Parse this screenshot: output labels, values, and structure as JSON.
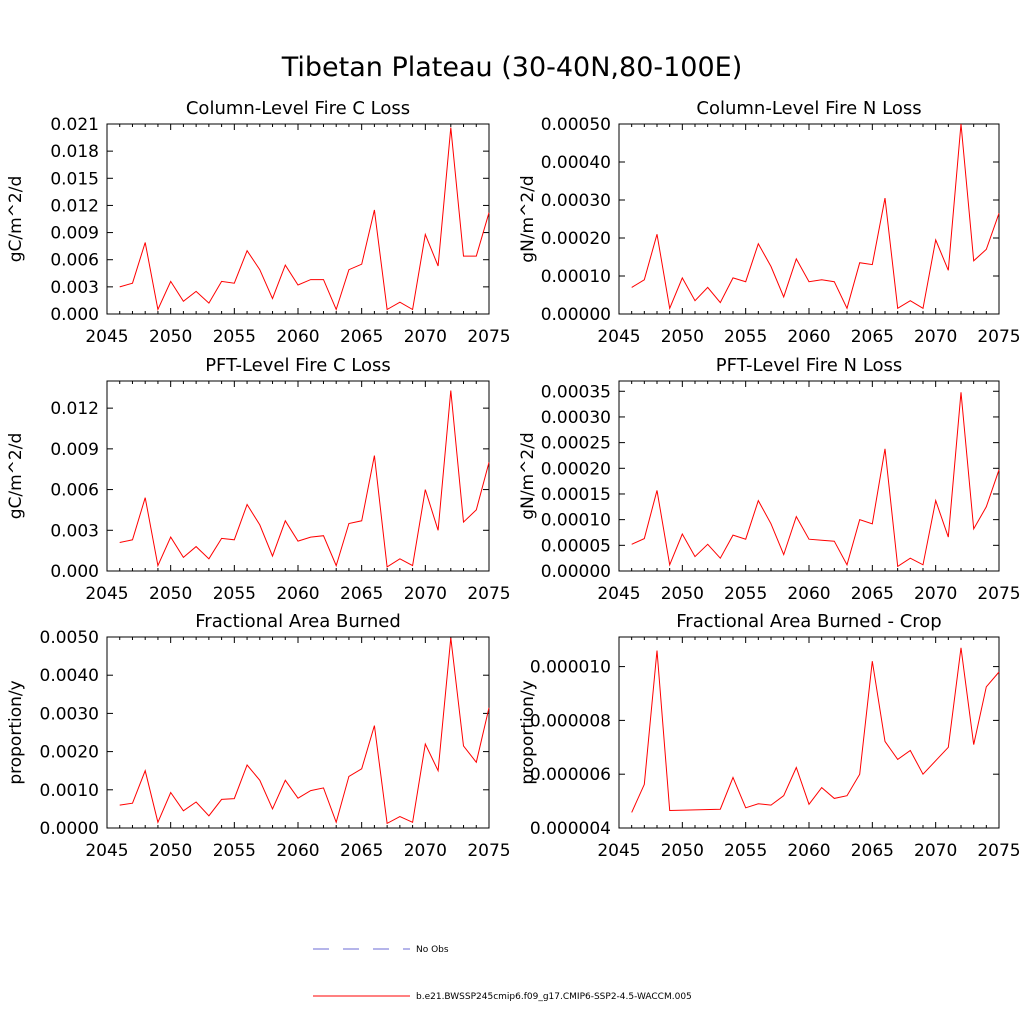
{
  "figure": {
    "title": "Tibetan Plateau (30-40N,80-100E)"
  },
  "colors": {
    "model_line": "#ff0000",
    "obs_line": "#6b6bd6",
    "axis": "#000000"
  },
  "legend": {
    "placement": "bottom-center",
    "entries": [
      {
        "label": "No Obs",
        "style": "dashed",
        "color": "#6b6bd6"
      },
      {
        "label": "b.e21.BWSSP245cmip6.f09_g17.CMIP6-SSP2-4.5-WACCM.005",
        "style": "solid",
        "color": "#ff0000"
      }
    ]
  },
  "chart_data": [
    {
      "type": "line",
      "title": "Column-Level Fire C Loss",
      "ylabel": "gC/m^2/d",
      "xlabel": "",
      "xlim": [
        2045,
        2075
      ],
      "ylim": [
        0,
        0.021
      ],
      "x_ticks": [
        2045,
        2050,
        2055,
        2060,
        2065,
        2070,
        2075
      ],
      "x_tick_labels": [
        "2045",
        "2050",
        "2055",
        "2060",
        "2065",
        "2070",
        "2075"
      ],
      "y_ticks": [
        0,
        0.003,
        0.006,
        0.009,
        0.012,
        0.015,
        0.018,
        0.021
      ],
      "y_tick_labels": [
        "0.000",
        "0.003",
        "0.006",
        "0.009",
        "0.012",
        "0.015",
        "0.018",
        "0.021"
      ],
      "x": [
        2046,
        2047,
        2048,
        2049,
        2050,
        2051,
        2052,
        2053,
        2054,
        2055,
        2056,
        2057,
        2058,
        2059,
        2060,
        2061,
        2062,
        2063,
        2064,
        2065,
        2066,
        2067,
        2068,
        2069,
        2070,
        2071,
        2072,
        2073,
        2074,
        2075
      ],
      "series": [
        {
          "values": [
            0.003,
            0.0034,
            0.0079,
            0.0005,
            0.0036,
            0.0014,
            0.0025,
            0.0012,
            0.0036,
            0.0034,
            0.007,
            0.0049,
            0.0017,
            0.0054,
            0.0032,
            0.0038,
            0.0038,
            0.0005,
            0.0049,
            0.0055,
            0.0115,
            0.0005,
            0.0013,
            0.0005,
            0.0088,
            0.0053,
            0.0206,
            0.0064,
            0.0064,
            0.0112
          ]
        }
      ]
    },
    {
      "type": "line",
      "title": "Column-Level Fire N Loss",
      "ylabel": "gN/m^2/d",
      "xlabel": "",
      "xlim": [
        2045,
        2075
      ],
      "ylim": [
        0,
        0.0005
      ],
      "x_ticks": [
        2045,
        2050,
        2055,
        2060,
        2065,
        2070,
        2075
      ],
      "x_tick_labels": [
        "2045",
        "2050",
        "2055",
        "2060",
        "2065",
        "2070",
        "2075"
      ],
      "y_ticks": [
        0,
        0.0001,
        0.0002,
        0.0003,
        0.0004,
        0.0005
      ],
      "y_tick_labels": [
        "0.00000",
        "0.00010",
        "0.00020",
        "0.00030",
        "0.00040",
        "0.00050"
      ],
      "x": [
        2046,
        2047,
        2048,
        2049,
        2050,
        2051,
        2052,
        2053,
        2054,
        2055,
        2056,
        2057,
        2058,
        2059,
        2060,
        2061,
        2062,
        2063,
        2064,
        2065,
        2066,
        2067,
        2068,
        2069,
        2070,
        2071,
        2072,
        2073,
        2074,
        2075
      ],
      "series": [
        {
          "values": [
            7e-05,
            9e-05,
            0.00021,
            1.5e-05,
            9.5e-05,
            3.5e-05,
            7e-05,
            3e-05,
            9.5e-05,
            8.5e-05,
            0.000185,
            0.000125,
            4.5e-05,
            0.000145,
            8.5e-05,
            9e-05,
            8.5e-05,
            1.5e-05,
            0.000135,
            0.00013,
            0.000305,
            1.5e-05,
            3.5e-05,
            1.5e-05,
            0.000195,
            0.000115,
            0.0005,
            0.00014,
            0.00017,
            0.000265
          ]
        }
      ]
    },
    {
      "type": "line",
      "title": "PFT-Level Fire C Loss",
      "ylabel": "gC/m^2/d",
      "xlabel": "",
      "xlim": [
        2045,
        2075
      ],
      "ylim": [
        0,
        0.014
      ],
      "x_ticks": [
        2045,
        2050,
        2055,
        2060,
        2065,
        2070,
        2075
      ],
      "x_tick_labels": [
        "2045",
        "2050",
        "2055",
        "2060",
        "2065",
        "2070",
        "2075"
      ],
      "y_ticks": [
        0,
        0.003,
        0.006,
        0.009,
        0.012
      ],
      "y_tick_labels": [
        "0.000",
        "0.003",
        "0.006",
        "0.009",
        "0.012"
      ],
      "x": [
        2046,
        2047,
        2048,
        2049,
        2050,
        2051,
        2052,
        2053,
        2054,
        2055,
        2056,
        2057,
        2058,
        2059,
        2060,
        2061,
        2062,
        2063,
        2064,
        2065,
        2066,
        2067,
        2068,
        2069,
        2070,
        2071,
        2072,
        2073,
        2074,
        2075
      ],
      "series": [
        {
          "values": [
            0.0021,
            0.0023,
            0.0054,
            0.0004,
            0.0025,
            0.001,
            0.0018,
            0.0009,
            0.0024,
            0.0023,
            0.0049,
            0.0034,
            0.0011,
            0.0037,
            0.0022,
            0.0025,
            0.0026,
            0.0004,
            0.0035,
            0.0037,
            0.0085,
            0.0003,
            0.0009,
            0.0004,
            0.006,
            0.003,
            0.0133,
            0.0036,
            0.0045,
            0.008
          ]
        }
      ]
    },
    {
      "type": "line",
      "title": "PFT-Level Fire N Loss",
      "ylabel": "gN/m^2/d",
      "xlabel": "",
      "xlim": [
        2045,
        2075
      ],
      "ylim": [
        0,
        0.00037
      ],
      "x_ticks": [
        2045,
        2050,
        2055,
        2060,
        2065,
        2070,
        2075
      ],
      "x_tick_labels": [
        "2045",
        "2050",
        "2055",
        "2060",
        "2065",
        "2070",
        "2075"
      ],
      "y_ticks": [
        0,
        5e-05,
        0.0001,
        0.00015,
        0.0002,
        0.00025,
        0.0003,
        0.00035
      ],
      "y_tick_labels": [
        "0.00000",
        "0.00005",
        "0.00010",
        "0.00015",
        "0.00020",
        "0.00025",
        "0.00030",
        "0.00035"
      ],
      "x": [
        2046,
        2047,
        2048,
        2049,
        2050,
        2051,
        2052,
        2053,
        2054,
        2055,
        2056,
        2057,
        2058,
        2059,
        2060,
        2061,
        2062,
        2063,
        2064,
        2065,
        2066,
        2067,
        2068,
        2069,
        2070,
        2071,
        2072,
        2073,
        2074,
        2075
      ],
      "series": [
        {
          "values": [
            5.2e-05,
            6.3e-05,
            0.000157,
            1.2e-05,
            7.2e-05,
            2.8e-05,
            5.2e-05,
            2.5e-05,
            7e-05,
            6.2e-05,
            0.000137,
            9.2e-05,
            3.2e-05,
            0.000106,
            6.2e-05,
            6e-05,
            5.8e-05,
            1.2e-05,
            0.0001,
            9.2e-05,
            0.000238,
            9e-06,
            2.5e-05,
            1.2e-05,
            0.000137,
            6.6e-05,
            0.000348,
            8.2e-05,
            0.000125,
            0.000197
          ]
        }
      ]
    },
    {
      "type": "line",
      "title": "Fractional Area Burned",
      "ylabel": "proportion/y",
      "xlabel": "",
      "xlim": [
        2045,
        2075
      ],
      "ylim": [
        0,
        0.005
      ],
      "x_ticks": [
        2045,
        2050,
        2055,
        2060,
        2065,
        2070,
        2075
      ],
      "x_tick_labels": [
        "2045",
        "2050",
        "2055",
        "2060",
        "2065",
        "2070",
        "2075"
      ],
      "y_ticks": [
        0,
        0.001,
        0.002,
        0.003,
        0.004,
        0.005
      ],
      "y_tick_labels": [
        "0.0000",
        "0.0010",
        "0.0020",
        "0.0030",
        "0.0040",
        "0.0050"
      ],
      "x": [
        2046,
        2047,
        2048,
        2049,
        2050,
        2051,
        2052,
        2053,
        2054,
        2055,
        2056,
        2057,
        2058,
        2059,
        2060,
        2061,
        2062,
        2063,
        2064,
        2065,
        2066,
        2067,
        2068,
        2069,
        2070,
        2071,
        2072,
        2073,
        2074,
        2075
      ],
      "series": [
        {
          "values": [
            0.0006,
            0.00065,
            0.0015,
            0.00015,
            0.00093,
            0.00045,
            0.00068,
            0.00032,
            0.00075,
            0.00077,
            0.00165,
            0.00125,
            0.0005,
            0.00125,
            0.00078,
            0.00098,
            0.00105,
            0.00015,
            0.00135,
            0.00155,
            0.00268,
            0.00012,
            0.0003,
            0.00015,
            0.0022,
            0.0015,
            0.00498,
            0.00215,
            0.00172,
            0.00315
          ]
        }
      ]
    },
    {
      "type": "line",
      "title": "Fractional Area Burned - Crop",
      "ylabel": "proportion/y",
      "xlabel": "",
      "xlim": [
        2045,
        2075
      ],
      "ylim": [
        4e-06,
        1.11e-05
      ],
      "x_ticks": [
        2045,
        2050,
        2055,
        2060,
        2065,
        2070,
        2075
      ],
      "x_tick_labels": [
        "2045",
        "2050",
        "2055",
        "2060",
        "2065",
        "2070",
        "2075"
      ],
      "y_ticks": [
        4e-06,
        6e-06,
        8e-06,
        1e-05
      ],
      "y_tick_labels": [
        "0.000004",
        "0.000006",
        "0.000008",
        "0.000010"
      ],
      "x": [
        2046,
        2047,
        2048,
        2049,
        2053,
        2054,
        2055,
        2056,
        2057,
        2058,
        2059,
        2060,
        2061,
        2062,
        2063,
        2064,
        2065,
        2066,
        2067,
        2068,
        2069,
        2070,
        2071,
        2072,
        2073,
        2074,
        2075
      ],
      "series": [
        {
          "values": [
            4.58e-06,
            5.62e-06,
            1.06e-05,
            4.65e-06,
            4.7e-06,
            5.88e-06,
            4.75e-06,
            4.9e-06,
            4.85e-06,
            5.2e-06,
            6.25e-06,
            4.88e-06,
            5.5e-06,
            5.1e-06,
            5.2e-06,
            6e-06,
            1.02e-05,
            7.22e-06,
            6.55e-06,
            6.88e-06,
            6e-06,
            6.5e-06,
            7e-06,
            1.07e-05,
            7.1e-06,
            9.25e-06,
            9.8e-06
          ]
        }
      ]
    }
  ]
}
